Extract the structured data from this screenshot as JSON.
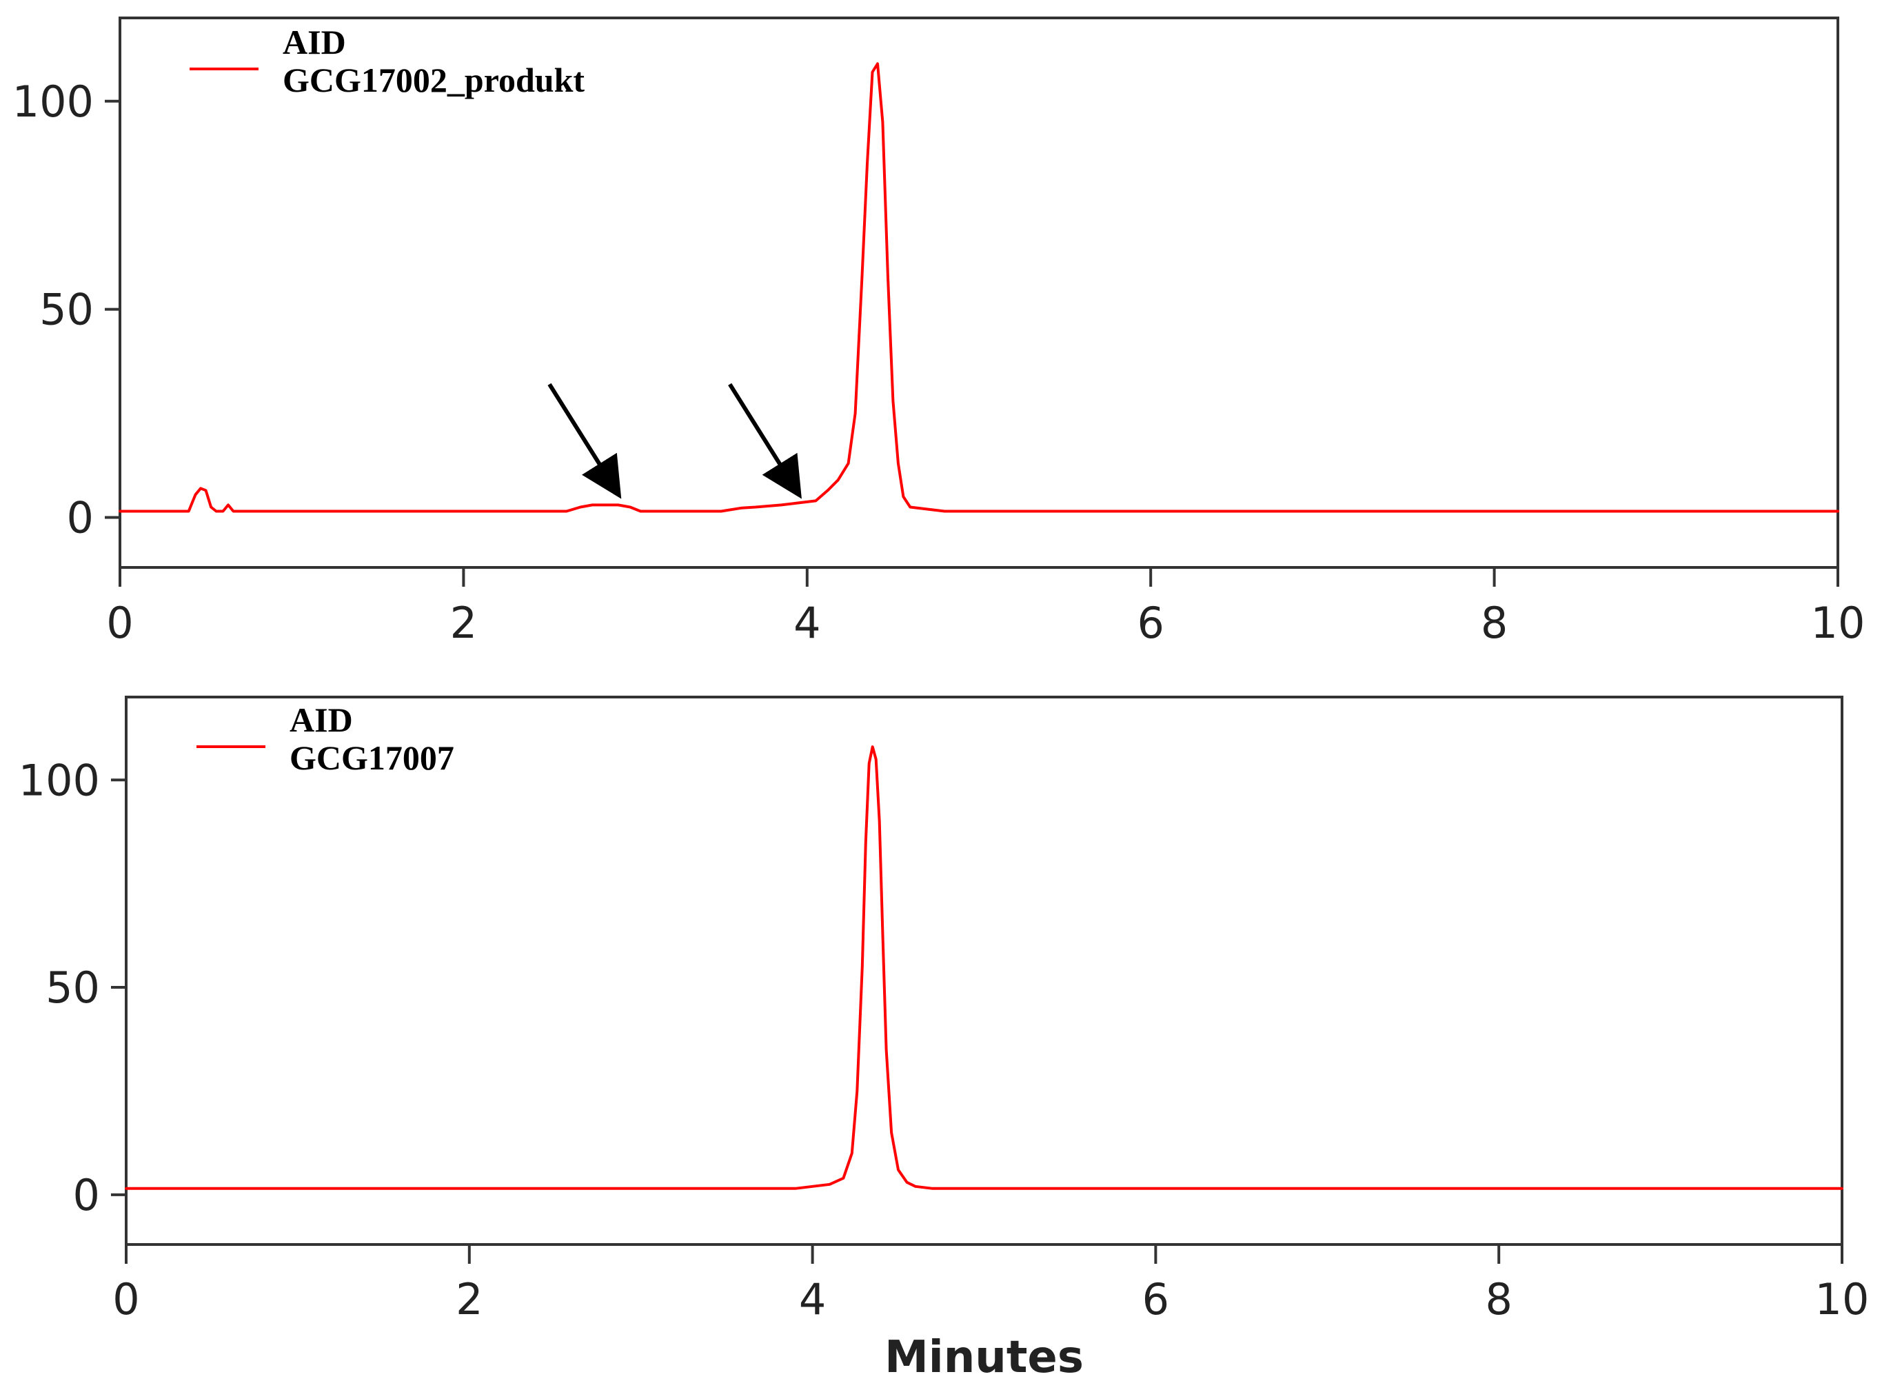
{
  "chart_data": [
    {
      "type": "line",
      "xlim": [
        0,
        10
      ],
      "ylim": [
        -12,
        120
      ],
      "x_ticks": [
        "0",
        "2",
        "4",
        "6",
        "8",
        "10"
      ],
      "y_ticks": [
        "0",
        "50",
        "100"
      ],
      "xlabel": "",
      "legend": {
        "title": "AID",
        "entry": "GCG17002_produkt",
        "placement": "top-left"
      },
      "color": "#ff0000",
      "series": [
        {
          "name": "GCG17002_produkt",
          "x": [
            0,
            0.4,
            0.44,
            0.47,
            0.5,
            0.53,
            0.56,
            0.6,
            0.63,
            0.66,
            0.7,
            1.0,
            2.0,
            2.6,
            2.68,
            2.75,
            2.9,
            2.97,
            3.03,
            3.5,
            3.62,
            3.7,
            3.85,
            3.95,
            4.05,
            4.12,
            4.18,
            4.24,
            4.28,
            4.32,
            4.35,
            4.38,
            4.41,
            4.44,
            4.47,
            4.5,
            4.53,
            4.56,
            4.6,
            4.7,
            4.8,
            4.85,
            5.0,
            6.0,
            7.0,
            8.0,
            9.0,
            10.0
          ],
          "y": [
            1.5,
            1.5,
            5.5,
            7,
            6.5,
            2.5,
            1.5,
            1.5,
            3,
            1.5,
            1.5,
            1.5,
            1.5,
            1.5,
            2.5,
            3,
            3,
            2.5,
            1.5,
            1.5,
            2.3,
            2.5,
            3,
            3.5,
            4,
            6.5,
            9,
            13,
            25,
            58,
            85,
            107,
            109,
            95,
            58,
            28,
            13,
            5,
            2.5,
            2,
            1.5,
            1.5,
            1.5,
            1.5,
            1.5,
            1.5,
            1.5,
            1.5
          ]
        }
      ],
      "annotations": [
        {
          "type": "arrow",
          "from": [
            2.5,
            32
          ],
          "to": [
            2.88,
            7
          ]
        },
        {
          "type": "arrow",
          "from": [
            3.55,
            32
          ],
          "to": [
            3.93,
            7
          ]
        }
      ]
    },
    {
      "type": "line",
      "xlim": [
        0,
        10
      ],
      "ylim": [
        -12,
        120
      ],
      "x_ticks": [
        "0",
        "2",
        "4",
        "6",
        "8",
        "10"
      ],
      "y_ticks": [
        "0",
        "50",
        "100"
      ],
      "xlabel": "Minutes",
      "legend": {
        "title": "AID",
        "entry": "GCG17007",
        "placement": "top-left"
      },
      "color": "#ff0000",
      "series": [
        {
          "name": "GCG17007",
          "x": [
            0,
            2.0,
            3.9,
            4.0,
            4.1,
            4.18,
            4.23,
            4.26,
            4.29,
            4.31,
            4.33,
            4.35,
            4.37,
            4.39,
            4.41,
            4.43,
            4.46,
            4.5,
            4.55,
            4.6,
            4.7,
            5.0,
            7.0,
            10.0
          ],
          "y": [
            1.5,
            1.5,
            1.5,
            2,
            2.5,
            4,
            10,
            25,
            55,
            85,
            104,
            108,
            105,
            90,
            62,
            35,
            15,
            6,
            3,
            2,
            1.5,
            1.5,
            1.5,
            1.5
          ]
        }
      ]
    }
  ]
}
